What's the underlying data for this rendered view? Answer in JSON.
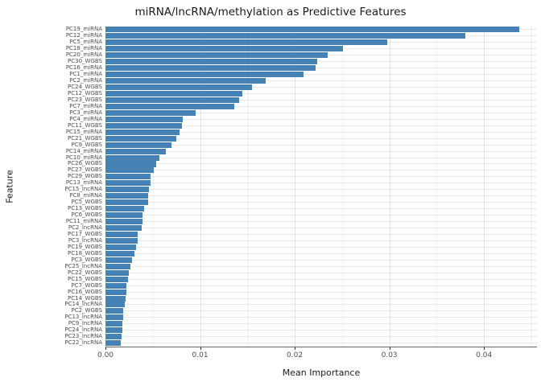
{
  "title": "miRNA/lncRNA/methylation as Predictive Features",
  "chart_data": {
    "type": "bar",
    "orientation": "horizontal",
    "title": "miRNA/lncRNA/methylation as Predictive Features",
    "xlabel": "Mean Importance",
    "ylabel": "Feature",
    "xlim": [
      0,
      0.0456
    ],
    "x_ticks": [
      0,
      0.01,
      0.02,
      0.03,
      0.04
    ],
    "x_tick_labels": [
      "0.00",
      "0.01",
      "0.02",
      "0.03",
      "0.04"
    ],
    "x_minor_ticks": [
      0.005,
      0.015,
      0.025,
      0.035,
      0.045
    ],
    "grid": true,
    "legend": false,
    "bar_color": "#4682B4",
    "categories": [
      "PC19_miRNA",
      "PC12_miRNA",
      "PC5_miRNA",
      "PC18_miRNA",
      "PC20_miRNA",
      "PC30_WGBS",
      "PC16_miRNA",
      "PC1_miRNA",
      "PC2_miRNA",
      "PC24_WGBS",
      "PC12_WGBS",
      "PC23_WGBS",
      "PC7_miRNA",
      "PC3_miRNA",
      "PC4_miRNA",
      "PC11_WGBS",
      "PC15_miRNA",
      "PC21_WGBS",
      "PC9_WGBS",
      "PC14_miRNA",
      "PC10_miRNA",
      "PC26_WGBS",
      "PC27_WGBS",
      "PC29_WGBS",
      "PC13_miRNA",
      "PC15_lncRNA",
      "PC8_miRNA",
      "PC5_WGBS",
      "PC13_WGBS",
      "PC6_WGBS",
      "PC11_miRNA",
      "PC2_lncRNA",
      "PC17_WGBS",
      "PC3_lncRNA",
      "PC19_WGBS",
      "PC18_WGBS",
      "PC3_WGBS",
      "PC25_lncRNA",
      "PC22_WGBS",
      "PC15_WGBS",
      "PC7_WGBS",
      "PC16_WGBS",
      "PC14_WGBS",
      "PC14_lncRNA",
      "PC2_WGBS",
      "PC13_lncRNA",
      "PC9_lncRNA",
      "PC24_lncRNA",
      "PC23_lncRNA",
      "PC22_lncRNA"
    ],
    "values": [
      0.0437,
      0.038,
      0.0298,
      0.0251,
      0.0235,
      0.0224,
      0.0222,
      0.0209,
      0.0169,
      0.0155,
      0.0145,
      0.0141,
      0.0136,
      0.0095,
      0.0082,
      0.0081,
      0.0078,
      0.0075,
      0.007,
      0.0064,
      0.0057,
      0.0054,
      0.0051,
      0.0048,
      0.0048,
      0.0046,
      0.0045,
      0.0045,
      0.0041,
      0.0039,
      0.0039,
      0.0038,
      0.0034,
      0.0034,
      0.0032,
      0.0031,
      0.0028,
      0.0026,
      0.0025,
      0.0024,
      0.0022,
      0.0022,
      0.0021,
      0.002,
      0.0019,
      0.0019,
      0.0018,
      0.0018,
      0.0017,
      0.0016
    ]
  }
}
